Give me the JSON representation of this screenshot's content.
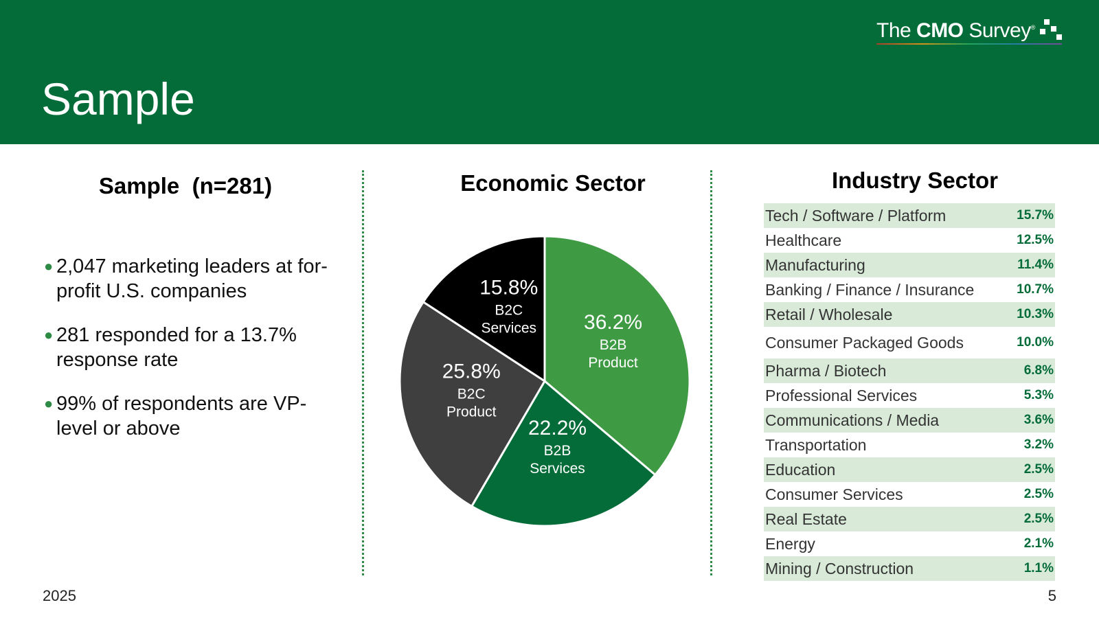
{
  "header": {
    "title": "Sample",
    "logo": {
      "prefix": "The ",
      "brand": "CMO",
      "suffix": " Survey",
      "reg": "®"
    }
  },
  "left": {
    "title": "Sample  (n=281)",
    "bullets": [
      "2,047 marketing leaders at for-profit U.S. companies",
      "281 responded for a 13.7% response rate",
      "99% of respondents are VP-level or above"
    ]
  },
  "middle": {
    "title": "Economic Sector"
  },
  "right": {
    "title": "Industry Sector",
    "rows": [
      {
        "label": "Tech / Software / Platform",
        "value": "15.7%"
      },
      {
        "label": "Healthcare",
        "value": "12.5%"
      },
      {
        "label": "Manufacturing",
        "value": "11.4%"
      },
      {
        "label": "Banking / Finance / Insurance",
        "value": "10.7%"
      },
      {
        "label": "Retail / Wholesale",
        "value": "10.3%"
      },
      {
        "label": "Consumer Packaged Goods",
        "value": "10.0%"
      },
      {
        "label": "Pharma / Biotech",
        "value": "6.8%"
      },
      {
        "label": "Professional Services",
        "value": "5.3%"
      },
      {
        "label": "Communications / Media",
        "value": "3.6%"
      },
      {
        "label": "Transportation",
        "value": "3.2%"
      },
      {
        "label": "Education",
        "value": "2.5%"
      },
      {
        "label": "Consumer Services",
        "value": "2.5%"
      },
      {
        "label": "Real Estate",
        "value": "2.5%"
      },
      {
        "label": "Energy",
        "value": "2.1%"
      },
      {
        "label": "Mining / Construction",
        "value": "1.1%"
      }
    ]
  },
  "footer": {
    "year": "2025",
    "page": "5"
  },
  "colors": {
    "header": "#046c38",
    "accent": "#2e8b45",
    "shade": "#d9ead9"
  },
  "chart_data": {
    "type": "pie",
    "title": "Economic Sector",
    "slices": [
      {
        "pct": "36.2%",
        "line1": "B2B",
        "line2": "Product",
        "value": 36.2,
        "color": "#3f9a44",
        "text": "#ffffff"
      },
      {
        "pct": "22.2%",
        "line1": "B2B",
        "line2": "Services",
        "value": 22.2,
        "color": "#046c38",
        "text": "#ffffff"
      },
      {
        "pct": "25.8%",
        "line1": "B2C",
        "line2": "Product",
        "value": 25.8,
        "color": "#3f3f3f",
        "text": "#ffffff"
      },
      {
        "pct": "15.8%",
        "line1": "B2C",
        "line2": "Services",
        "value": 15.8,
        "color": "#000000",
        "text": "#ffffff"
      }
    ]
  }
}
